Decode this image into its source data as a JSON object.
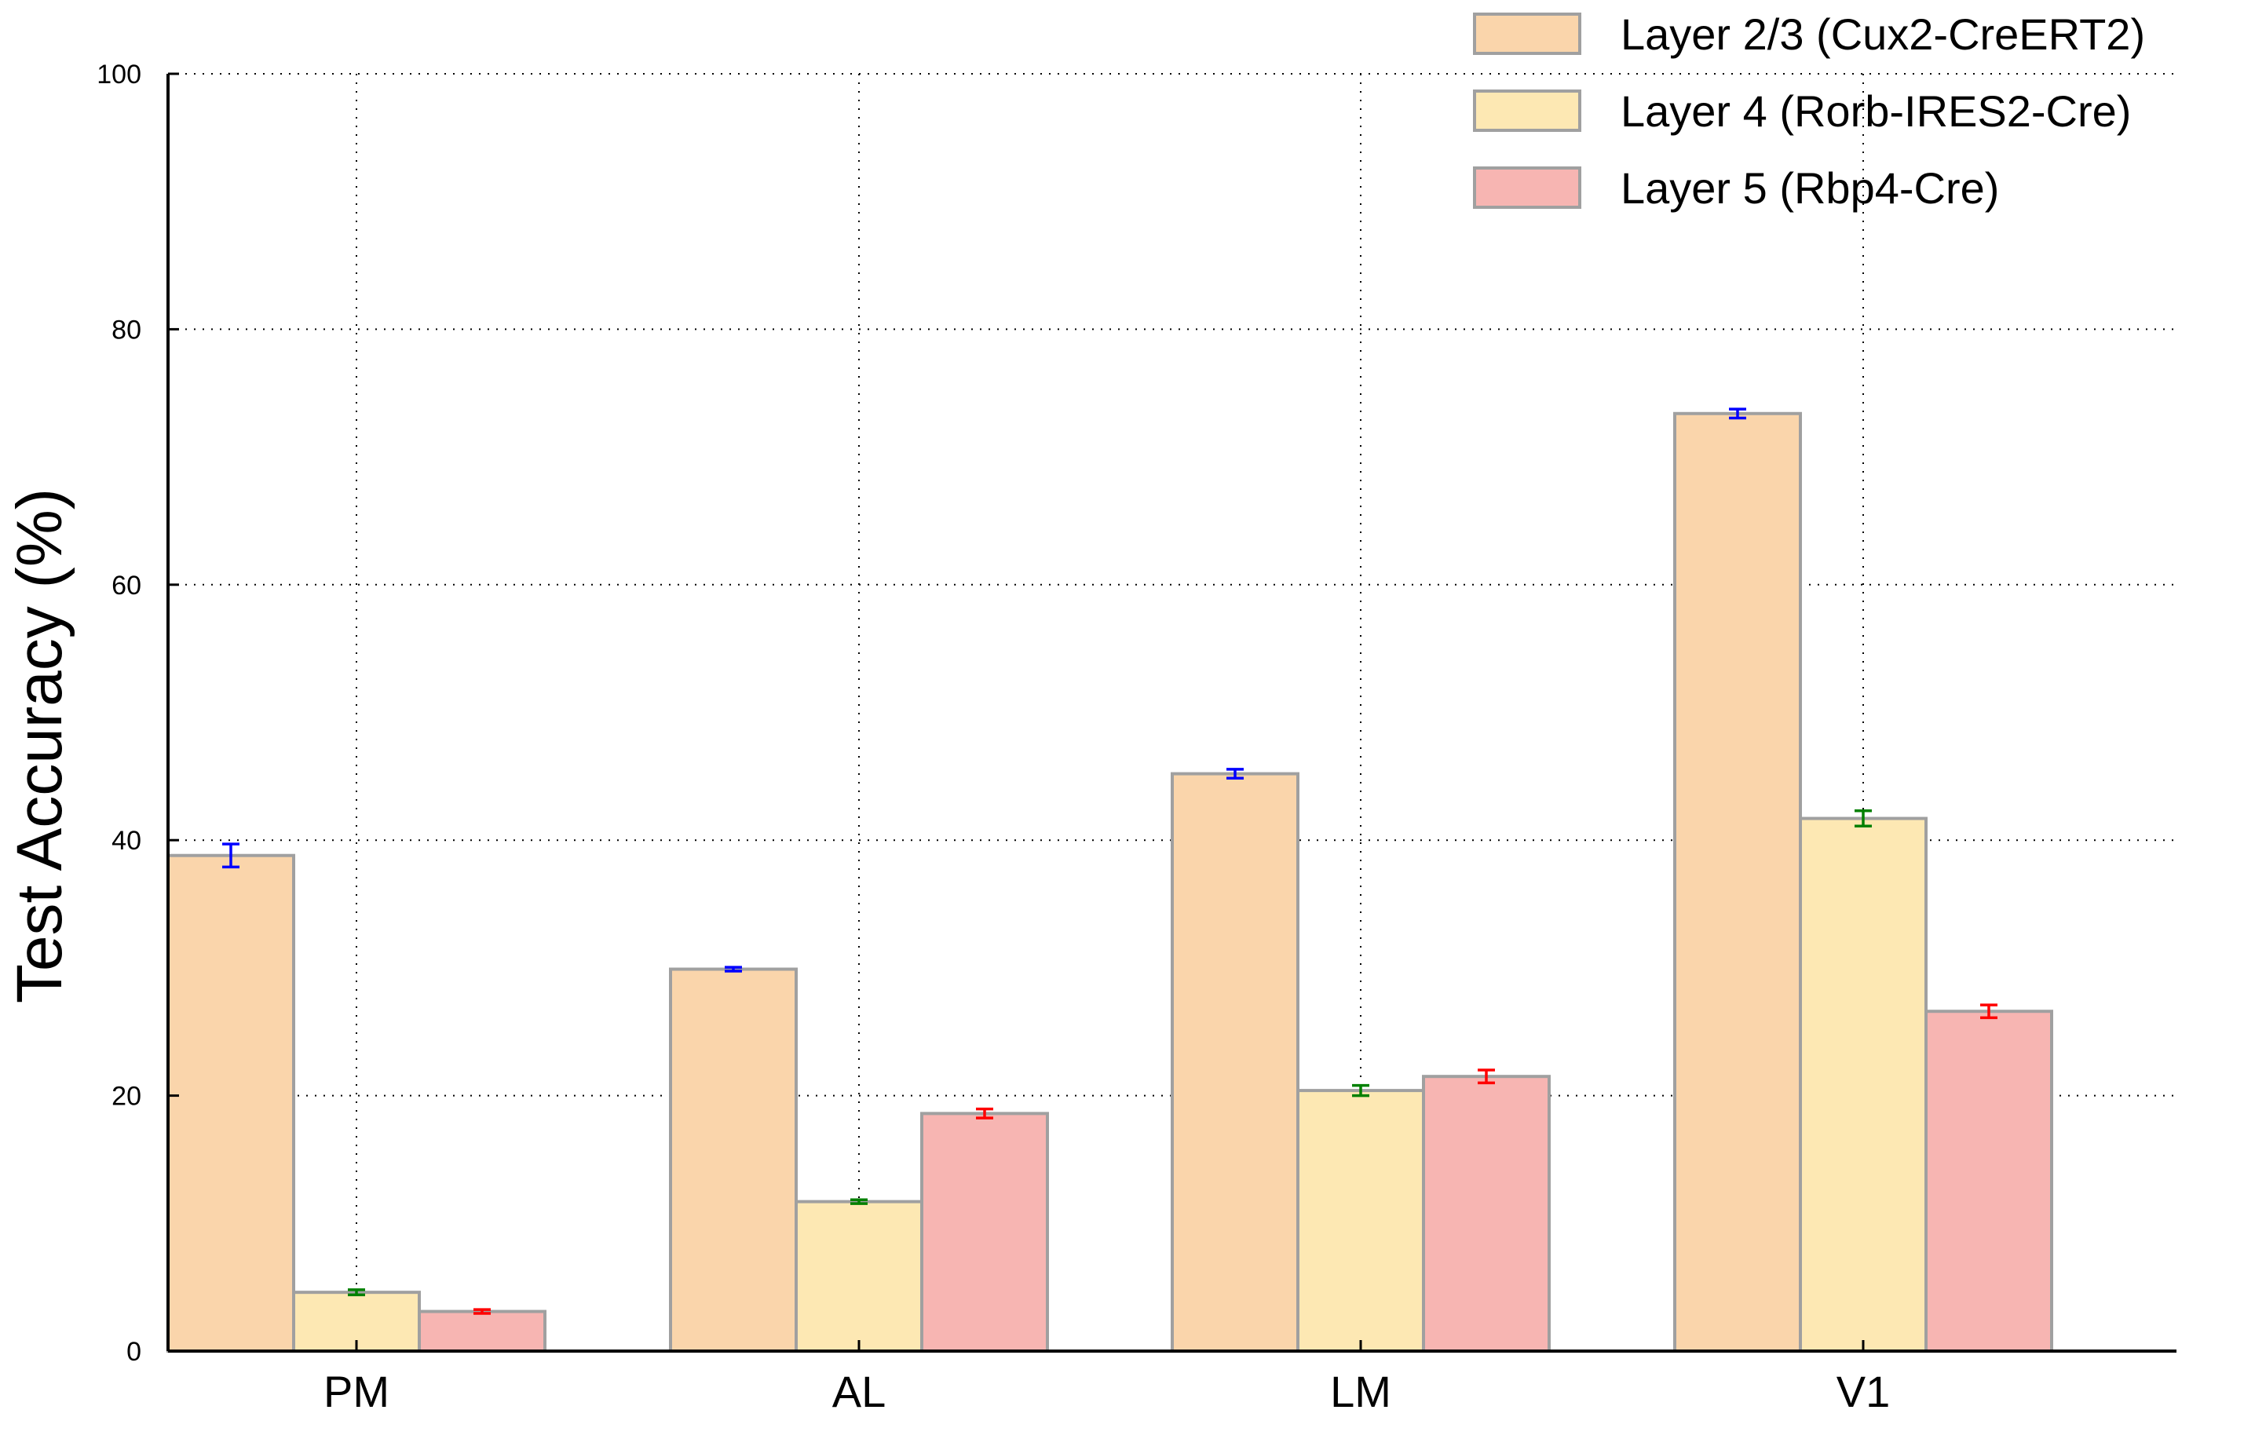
{
  "chart_data": {
    "type": "bar",
    "categories": [
      "PM",
      "AL",
      "LM",
      "V1"
    ],
    "series": [
      {
        "name": "Layer 2/3 (Cux2-CreERT2)",
        "color": "#fad5ab",
        "error_color": "#0000ff",
        "values": [
          38.8,
          29.9,
          45.2,
          73.4
        ],
        "errors": [
          0.9,
          0.15,
          0.35,
          0.35
        ]
      },
      {
        "name": "Layer 4 (Rorb-IRES2-Cre)",
        "color": "#fde8b3",
        "error_color": "#008000",
        "values": [
          4.6,
          11.7,
          20.4,
          41.7
        ],
        "errors": [
          0.2,
          0.15,
          0.4,
          0.6
        ]
      },
      {
        "name": "Layer 5 (Rbp4-Cre)",
        "color": "#f7b5b2",
        "error_color": "#ff0000",
        "values": [
          3.1,
          18.6,
          21.5,
          26.6
        ],
        "errors": [
          0.15,
          0.35,
          0.5,
          0.5
        ]
      }
    ],
    "title": "",
    "xlabel": "",
    "ylabel": "Test Accuracy (%)",
    "ylim": [
      0,
      100
    ],
    "yticks": [
      0,
      20,
      40,
      60,
      80,
      100
    ],
    "grid": true,
    "legend": "top-right"
  }
}
